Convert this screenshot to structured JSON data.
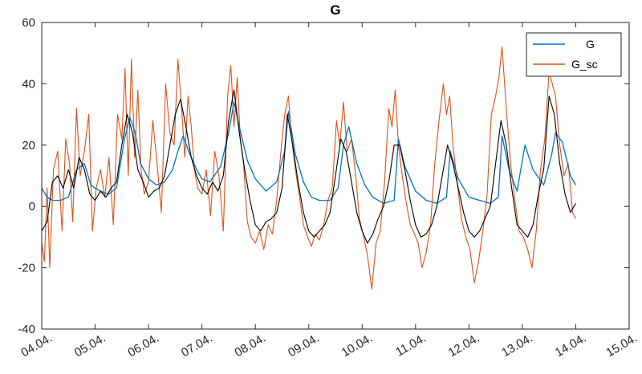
{
  "chart_data": {
    "type": "line",
    "title": "G",
    "xlabel": "",
    "ylabel": "",
    "x_tick_labels": [
      "04.04.",
      "05.04.",
      "06.04.",
      "07.04.",
      "08.04.",
      "09.04.",
      "10.04.",
      "11.04.",
      "12.04.",
      "13.04.",
      "14.04.",
      "15.04."
    ],
    "xlim_days": [
      4,
      15
    ],
    "ylim": [
      -40,
      60
    ],
    "y_ticks": [
      -40,
      -20,
      0,
      20,
      40,
      60
    ],
    "legend_position": "top-right",
    "grid": false,
    "colors": {
      "G": "#0072BD",
      "G_sc": "#D95319",
      "smoothed": "#000000",
      "axes": "#262626"
    },
    "series": [
      {
        "name": "G",
        "x": [
          4.0,
          4.1,
          4.2,
          4.35,
          4.5,
          4.65,
          4.8,
          4.92,
          5.0,
          5.1,
          5.25,
          5.4,
          5.55,
          5.65,
          5.75,
          5.85,
          6.0,
          6.15,
          6.3,
          6.45,
          6.55,
          6.65,
          6.75,
          6.9,
          7.0,
          7.15,
          7.35,
          7.5,
          7.6,
          7.7,
          7.85,
          8.0,
          8.2,
          8.4,
          8.55,
          8.62,
          8.75,
          8.9,
          9.05,
          9.2,
          9.4,
          9.55,
          9.65,
          9.75,
          9.9,
          10.05,
          10.2,
          10.4,
          10.6,
          10.68,
          10.8,
          11.0,
          11.2,
          11.4,
          11.58,
          11.65,
          11.8,
          12.0,
          12.2,
          12.4,
          12.55,
          12.62,
          12.75,
          12.9,
          13.05,
          13.2,
          13.4,
          13.55,
          13.62,
          13.75,
          13.9,
          14.0
        ],
        "values": [
          6,
          3,
          2,
          2,
          3,
          12,
          14,
          7,
          6,
          5,
          4,
          6,
          22,
          29,
          24,
          14,
          9,
          7,
          8,
          12,
          18,
          23,
          18,
          12,
          9,
          8,
          13,
          24,
          34,
          26,
          15,
          9,
          5,
          8,
          18,
          31,
          17,
          8,
          3,
          2,
          2,
          6,
          20,
          26,
          14,
          7,
          3,
          1,
          2,
          22,
          13,
          5,
          2,
          1,
          3,
          18,
          9,
          3,
          2,
          1,
          3,
          23,
          12,
          5,
          20,
          12,
          7,
          17,
          24,
          21,
          10,
          7
        ]
      },
      {
        "name": "G_sc",
        "x": [
          4.0,
          4.05,
          4.1,
          4.15,
          4.22,
          4.3,
          4.38,
          4.45,
          4.52,
          4.58,
          4.65,
          4.72,
          4.8,
          4.88,
          4.95,
          5.02,
          5.1,
          5.18,
          5.26,
          5.34,
          5.42,
          5.5,
          5.56,
          5.62,
          5.68,
          5.74,
          5.8,
          5.86,
          5.92,
          6.0,
          6.08,
          6.16,
          6.24,
          6.32,
          6.4,
          6.48,
          6.55,
          6.62,
          6.68,
          6.74,
          6.8,
          6.86,
          6.92,
          7.0,
          7.08,
          7.16,
          7.24,
          7.32,
          7.4,
          7.48,
          7.54,
          7.6,
          7.66,
          7.72,
          7.78,
          7.85,
          7.92,
          8.0,
          8.08,
          8.16,
          8.24,
          8.32,
          8.4,
          8.48,
          8.55,
          8.62,
          8.68,
          8.75,
          8.82,
          8.9,
          8.98,
          9.05,
          9.12,
          9.2,
          9.28,
          9.36,
          9.44,
          9.52,
          9.58,
          9.65,
          9.72,
          9.8,
          9.88,
          9.95,
          10.03,
          10.1,
          10.18,
          10.26,
          10.34,
          10.42,
          10.5,
          10.56,
          10.62,
          10.68,
          10.75,
          10.82,
          10.9,
          10.98,
          11.05,
          11.12,
          11.2,
          11.28,
          11.36,
          11.44,
          11.52,
          11.58,
          11.64,
          11.7,
          11.78,
          11.86,
          11.94,
          12.02,
          12.1,
          12.18,
          12.26,
          12.34,
          12.42,
          12.5,
          12.56,
          12.62,
          12.7,
          12.78,
          12.86,
          12.94,
          13.02,
          13.1,
          13.18,
          13.26,
          13.34,
          13.42,
          13.5,
          13.56,
          13.62,
          13.7,
          13.78,
          13.86,
          13.94,
          14.0
        ],
        "values": [
          -12,
          -18,
          6,
          -20,
          12,
          18,
          -8,
          22,
          14,
          -5,
          32,
          10,
          18,
          30,
          -8,
          6,
          12,
          3,
          16,
          -6,
          30,
          22,
          45,
          10,
          48,
          16,
          38,
          12,
          4,
          8,
          28,
          14,
          -2,
          40,
          24,
          20,
          48,
          32,
          16,
          36,
          26,
          12,
          6,
          4,
          12,
          -3,
          18,
          10,
          -8,
          36,
          46,
          26,
          42,
          22,
          14,
          -5,
          -10,
          -12,
          -8,
          -14,
          -6,
          -9,
          2,
          18,
          30,
          36,
          22,
          12,
          4,
          -6,
          -10,
          -13,
          -9,
          -11,
          -6,
          2,
          6,
          28,
          20,
          34,
          18,
          22,
          10,
          -4,
          -10,
          -16,
          -27,
          -12,
          -8,
          8,
          32,
          26,
          38,
          20,
          10,
          2,
          -6,
          -9,
          -12,
          -20,
          -15,
          -6,
          14,
          28,
          40,
          30,
          36,
          20,
          8,
          -4,
          -10,
          -14,
          -25,
          -18,
          -8,
          4,
          30,
          36,
          42,
          52,
          32,
          14,
          2,
          -8,
          -10,
          -14,
          -20,
          -8,
          12,
          22,
          44,
          40,
          36,
          20,
          10,
          14,
          -2,
          -4
        ]
      },
      {
        "name": "",
        "x": [
          4.0,
          4.1,
          4.2,
          4.3,
          4.4,
          4.5,
          4.6,
          4.7,
          4.8,
          4.9,
          5.0,
          5.1,
          5.2,
          5.3,
          5.4,
          5.5,
          5.6,
          5.7,
          5.8,
          5.9,
          6.0,
          6.1,
          6.2,
          6.3,
          6.4,
          6.5,
          6.6,
          6.7,
          6.8,
          6.9,
          7.0,
          7.1,
          7.2,
          7.3,
          7.4,
          7.5,
          7.6,
          7.7,
          7.8,
          7.9,
          8.0,
          8.1,
          8.2,
          8.3,
          8.4,
          8.5,
          8.6,
          8.7,
          8.8,
          8.9,
          9.0,
          9.1,
          9.2,
          9.3,
          9.4,
          9.5,
          9.6,
          9.7,
          9.8,
          9.9,
          10.0,
          10.1,
          10.2,
          10.3,
          10.4,
          10.5,
          10.6,
          10.7,
          10.8,
          10.9,
          11.0,
          11.1,
          11.2,
          11.3,
          11.4,
          11.5,
          11.6,
          11.7,
          11.8,
          11.9,
          12.0,
          12.1,
          12.2,
          12.3,
          12.4,
          12.5,
          12.6,
          12.7,
          12.8,
          12.9,
          13.0,
          13.1,
          13.2,
          13.3,
          13.4,
          13.5,
          13.6,
          13.7,
          13.8,
          13.9,
          14.0
        ],
        "values": [
          -8,
          -5,
          8,
          10,
          6,
          12,
          6,
          16,
          12,
          4,
          2,
          5,
          3,
          6,
          8,
          20,
          30,
          24,
          12,
          8,
          3,
          5,
          6,
          10,
          20,
          30,
          35,
          26,
          16,
          10,
          6,
          4,
          8,
          5,
          10,
          28,
          38,
          24,
          12,
          2,
          -6,
          -8,
          -5,
          -4,
          -2,
          6,
          30,
          20,
          8,
          -2,
          -8,
          -10,
          -8,
          -6,
          -2,
          10,
          22,
          18,
          8,
          -2,
          -8,
          -12,
          -9,
          -4,
          0,
          8,
          20,
          20,
          12,
          2,
          -6,
          -10,
          -9,
          -6,
          0,
          10,
          20,
          14,
          6,
          -2,
          -8,
          -10,
          -8,
          -4,
          0,
          14,
          28,
          20,
          6,
          -6,
          -8,
          -10,
          -6,
          4,
          12,
          36,
          30,
          14,
          4,
          -2,
          1
        ]
      }
    ],
    "legend": [
      "G",
      "G_sc"
    ]
  }
}
